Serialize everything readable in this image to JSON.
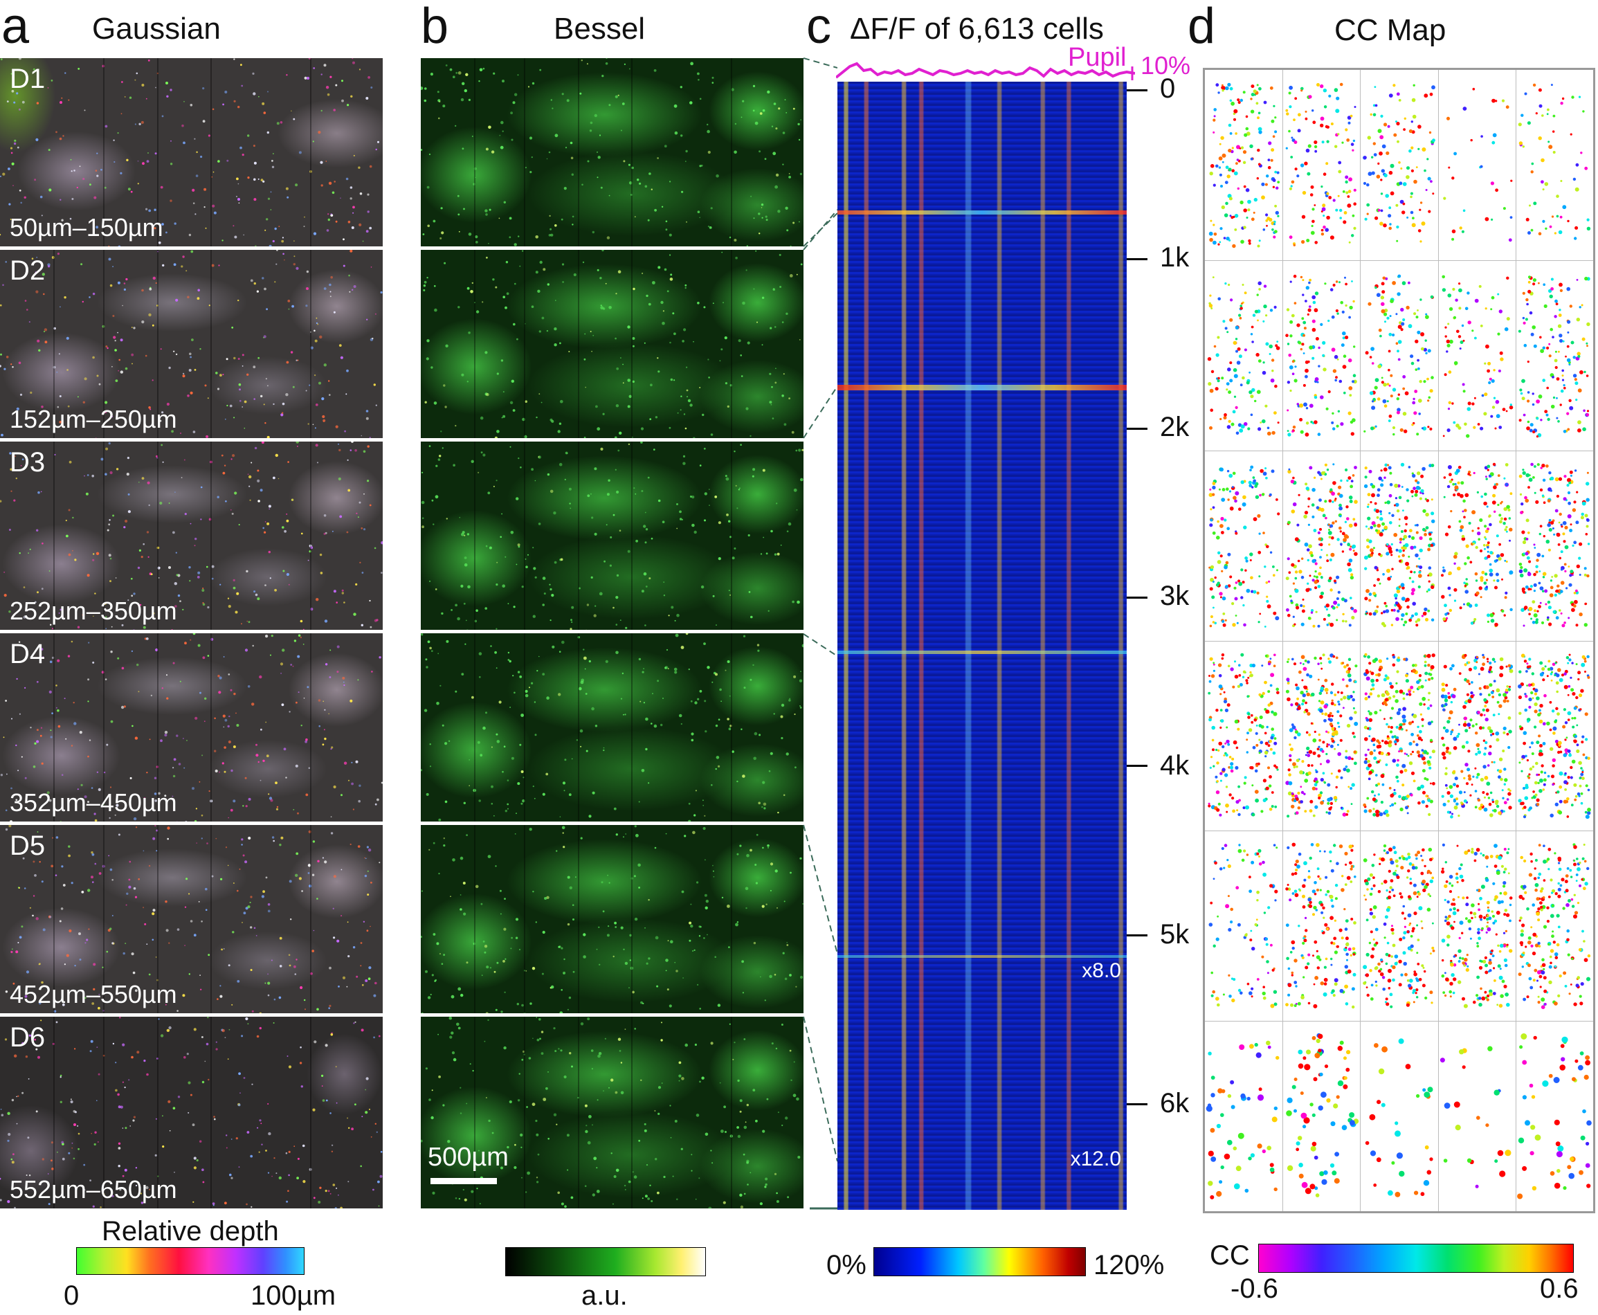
{
  "panel_a": {
    "letter": "a",
    "title": "Gaussian",
    "depths": [
      {
        "id": "D1",
        "range": "50µm–150µm"
      },
      {
        "id": "D2",
        "range": "152µm–250µm"
      },
      {
        "id": "D3",
        "range": "252µm–350µm"
      },
      {
        "id": "D4",
        "range": "352µm–450µm"
      },
      {
        "id": "D5",
        "range": "452µm–550µm"
      },
      {
        "id": "D6",
        "range": "552µm–650µm"
      }
    ],
    "colorbar": {
      "label": "Relative depth",
      "min": "0",
      "max": "100µm"
    }
  },
  "panel_b": {
    "letter": "b",
    "title": "Bessel",
    "scalebar": "500µm",
    "colorbar": {
      "label": "a.u."
    }
  },
  "panel_c": {
    "letter": "c",
    "title": "ΔF/F of 6,613 cells",
    "pupil_label": "Pupil",
    "pupil_scale": "10%",
    "yticks": [
      "0",
      "1k",
      "2k",
      "3k",
      "4k",
      "5k",
      "6k"
    ],
    "annotations": [
      "x8.0",
      "x12.0"
    ],
    "colorbar": {
      "min": "0%",
      "max": "120%"
    }
  },
  "panel_d": {
    "letter": "d",
    "title": "CC Map",
    "colorbar": {
      "label": "CC",
      "min": "-0.6",
      "max": "0.6"
    }
  },
  "colors": {
    "pupil": "#e020d0",
    "heat_low": "#0b20b8"
  }
}
